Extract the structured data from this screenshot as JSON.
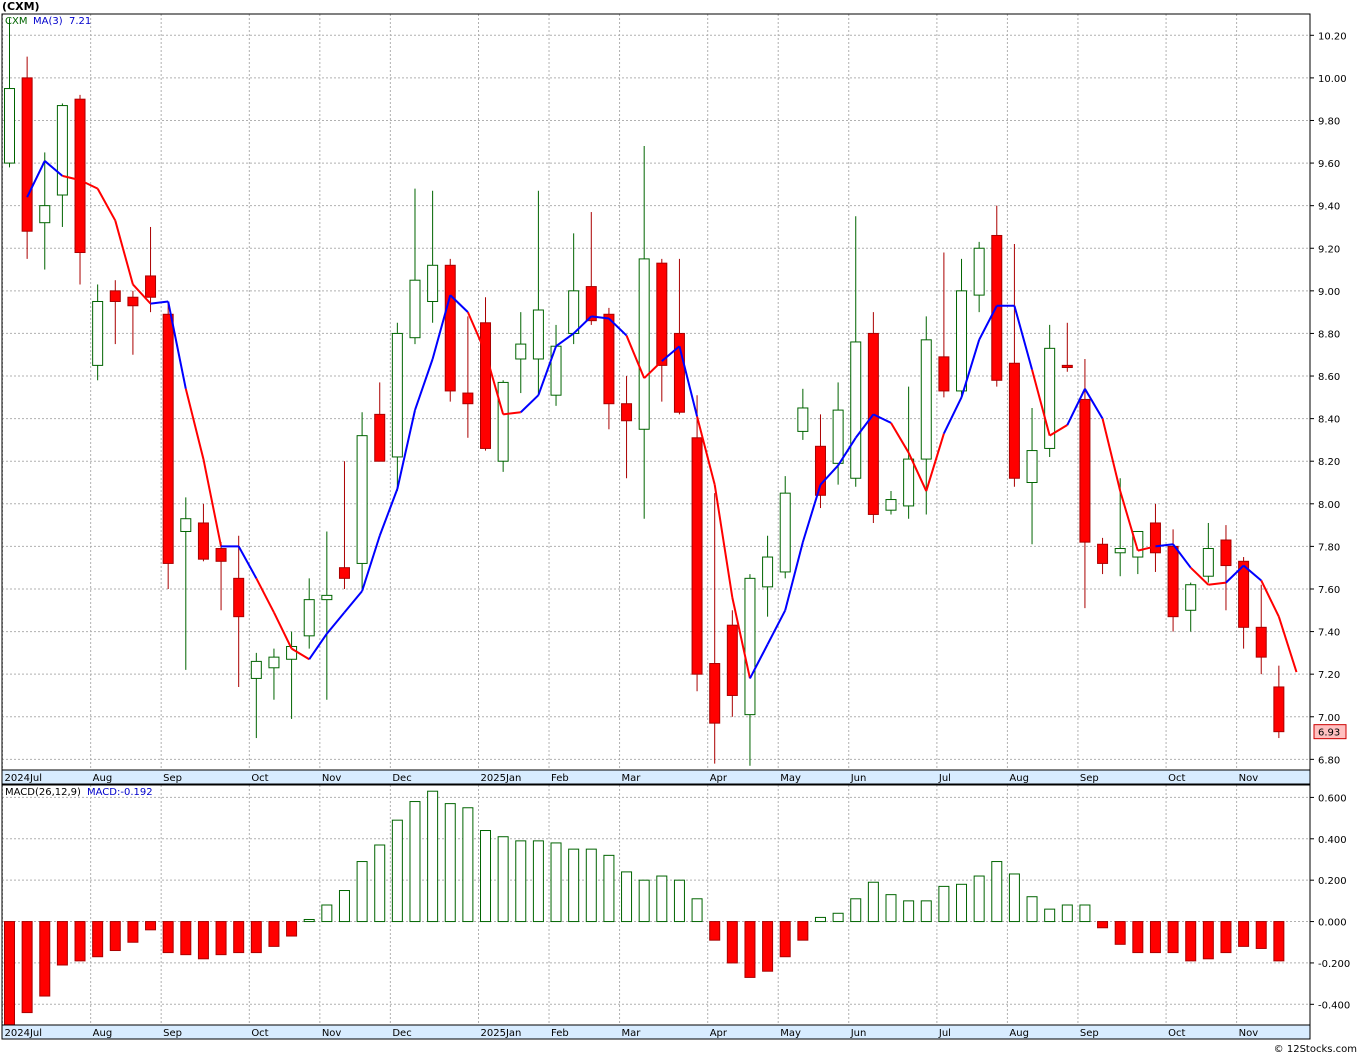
{
  "header": {
    "title": "(CXM)"
  },
  "footer": {
    "watermark": "© 12Stocks.com"
  },
  "colors": {
    "up": "#006400",
    "down": "#ff0000",
    "ma_up": "#0000ff",
    "ma_down": "#ff0000",
    "macd_up": "#006400",
    "macd_down": "#ff0000",
    "grid": "#b0b0b0",
    "axis_band": "#d8ecff"
  },
  "chart_data": [
    {
      "type": "candlestick",
      "panel": "price",
      "symbol_label": "CXM",
      "ma_label": "MA(3)",
      "ma_value": "7.21",
      "last_price_label": "6.93",
      "ylim": [
        6.75,
        10.3
      ],
      "y_ticks": [
        "6.80",
        "7.00",
        "7.20",
        "7.40",
        "7.60",
        "7.80",
        "8.00",
        "8.20",
        "8.40",
        "8.60",
        "8.80",
        "9.00",
        "9.20",
        "9.40",
        "9.60",
        "9.80",
        "10.00",
        "10.20"
      ],
      "x_labels": [
        {
          "week": 0,
          "text": "2024Jul"
        },
        {
          "week": 5,
          "text": "Aug"
        },
        {
          "week": 9,
          "text": "Sep"
        },
        {
          "week": 14,
          "text": "Oct"
        },
        {
          "week": 18,
          "text": "Nov"
        },
        {
          "week": 22,
          "text": "Dec"
        },
        {
          "week": 27,
          "text": "2025Jan"
        },
        {
          "week": 31,
          "text": "Feb"
        },
        {
          "week": 35,
          "text": "Mar"
        },
        {
          "week": 40,
          "text": "Apr"
        },
        {
          "week": 44,
          "text": "May"
        },
        {
          "week": 48,
          "text": "Jun"
        },
        {
          "week": 53,
          "text": "Jul"
        },
        {
          "week": 57,
          "text": "Aug"
        },
        {
          "week": 61,
          "text": "Sep"
        },
        {
          "week": 66,
          "text": "Oct"
        },
        {
          "week": 70,
          "text": "Nov"
        }
      ],
      "candles": [
        {
          "o": 9.6,
          "h": 10.28,
          "l": 9.58,
          "c": 9.95
        },
        {
          "o": 10.0,
          "h": 10.1,
          "l": 9.15,
          "c": 9.28
        },
        {
          "o": 9.32,
          "h": 9.65,
          "l": 9.1,
          "c": 9.4
        },
        {
          "o": 9.45,
          "h": 9.88,
          "l": 9.3,
          "c": 9.87
        },
        {
          "o": 9.9,
          "h": 9.92,
          "l": 9.03,
          "c": 9.18
        },
        {
          "o": 8.65,
          "h": 9.03,
          "l": 8.58,
          "c": 8.95
        },
        {
          "o": 9.0,
          "h": 9.05,
          "l": 8.75,
          "c": 8.95
        },
        {
          "o": 8.97,
          "h": 9.0,
          "l": 8.7,
          "c": 8.93
        },
        {
          "o": 9.07,
          "h": 9.3,
          "l": 8.9,
          "c": 8.97
        },
        {
          "o": 8.89,
          "h": 8.95,
          "l": 7.6,
          "c": 7.72
        },
        {
          "o": 7.87,
          "h": 8.03,
          "l": 7.22,
          "c": 7.93
        },
        {
          "o": 7.91,
          "h": 8.0,
          "l": 7.73,
          "c": 7.74
        },
        {
          "o": 7.79,
          "h": 7.82,
          "l": 7.5,
          "c": 7.73
        },
        {
          "o": 7.65,
          "h": 7.85,
          "l": 7.14,
          "c": 7.47
        },
        {
          "o": 7.18,
          "h": 7.3,
          "l": 6.9,
          "c": 7.26
        },
        {
          "o": 7.23,
          "h": 7.32,
          "l": 7.08,
          "c": 7.28
        },
        {
          "o": 7.27,
          "h": 7.4,
          "l": 6.99,
          "c": 7.33
        },
        {
          "o": 7.38,
          "h": 7.65,
          "l": 7.32,
          "c": 7.55
        },
        {
          "o": 7.55,
          "h": 7.87,
          "l": 7.08,
          "c": 7.57
        },
        {
          "o": 7.7,
          "h": 8.2,
          "l": 7.6,
          "c": 7.65
        },
        {
          "o": 7.72,
          "h": 8.43,
          "l": 7.6,
          "c": 8.32
        },
        {
          "o": 8.42,
          "h": 8.57,
          "l": 8.2,
          "c": 8.2
        },
        {
          "o": 8.22,
          "h": 8.85,
          "l": 8.06,
          "c": 8.8
        },
        {
          "o": 8.78,
          "h": 9.48,
          "l": 8.75,
          "c": 9.05
        },
        {
          "o": 8.95,
          "h": 9.47,
          "l": 8.85,
          "c": 9.12
        },
        {
          "o": 9.12,
          "h": 9.15,
          "l": 8.48,
          "c": 8.53
        },
        {
          "o": 8.52,
          "h": 8.88,
          "l": 8.31,
          "c": 8.47
        },
        {
          "o": 8.85,
          "h": 8.97,
          "l": 8.25,
          "c": 8.26
        },
        {
          "o": 8.2,
          "h": 8.58,
          "l": 8.15,
          "c": 8.57
        },
        {
          "o": 8.68,
          "h": 8.9,
          "l": 8.52,
          "c": 8.75
        },
        {
          "o": 8.68,
          "h": 9.47,
          "l": 8.51,
          "c": 8.91
        },
        {
          "o": 8.51,
          "h": 8.84,
          "l": 8.46,
          "c": 8.74
        },
        {
          "o": 8.8,
          "h": 9.27,
          "l": 8.75,
          "c": 9.0
        },
        {
          "o": 9.02,
          "h": 9.37,
          "l": 8.84,
          "c": 8.86
        },
        {
          "o": 8.89,
          "h": 8.92,
          "l": 8.35,
          "c": 8.47
        },
        {
          "o": 8.47,
          "h": 8.6,
          "l": 8.12,
          "c": 8.39
        },
        {
          "o": 8.35,
          "h": 9.68,
          "l": 7.93,
          "c": 9.15
        },
        {
          "o": 9.13,
          "h": 9.15,
          "l": 8.48,
          "c": 8.65
        },
        {
          "o": 8.8,
          "h": 9.15,
          "l": 8.42,
          "c": 8.43
        },
        {
          "o": 8.31,
          "h": 8.51,
          "l": 7.12,
          "c": 7.2
        },
        {
          "o": 7.25,
          "h": 8.05,
          "l": 6.78,
          "c": 6.97
        },
        {
          "o": 7.43,
          "h": 7.5,
          "l": 7.0,
          "c": 7.1
        },
        {
          "o": 7.01,
          "h": 7.67,
          "l": 6.77,
          "c": 7.65
        },
        {
          "o": 7.61,
          "h": 7.85,
          "l": 7.47,
          "c": 7.75
        },
        {
          "o": 7.68,
          "h": 8.13,
          "l": 7.65,
          "c": 8.05
        },
        {
          "o": 8.34,
          "h": 8.54,
          "l": 8.3,
          "c": 8.45
        },
        {
          "o": 8.27,
          "h": 8.42,
          "l": 7.98,
          "c": 8.04
        },
        {
          "o": 8.19,
          "h": 8.57,
          "l": 8.09,
          "c": 8.44
        },
        {
          "o": 8.12,
          "h": 9.35,
          "l": 8.08,
          "c": 8.76
        },
        {
          "o": 8.8,
          "h": 8.9,
          "l": 7.91,
          "c": 7.95
        },
        {
          "o": 7.97,
          "h": 8.06,
          "l": 7.95,
          "c": 8.02
        },
        {
          "o": 7.99,
          "h": 8.55,
          "l": 7.93,
          "c": 8.21
        },
        {
          "o": 8.21,
          "h": 8.88,
          "l": 7.95,
          "c": 8.77
        },
        {
          "o": 8.69,
          "h": 9.18,
          "l": 8.5,
          "c": 8.53
        },
        {
          "o": 8.53,
          "h": 9.15,
          "l": 8.5,
          "c": 9.0
        },
        {
          "o": 8.98,
          "h": 9.23,
          "l": 8.9,
          "c": 9.2
        },
        {
          "o": 9.26,
          "h": 9.4,
          "l": 8.55,
          "c": 8.58
        },
        {
          "o": 8.66,
          "h": 9.22,
          "l": 8.08,
          "c": 8.12
        },
        {
          "o": 8.1,
          "h": 8.45,
          "l": 7.81,
          "c": 8.25
        },
        {
          "o": 8.26,
          "h": 8.84,
          "l": 8.22,
          "c": 8.73
        },
        {
          "o": 8.65,
          "h": 8.85,
          "l": 8.62,
          "c": 8.64
        },
        {
          "o": 8.49,
          "h": 8.68,
          "l": 7.51,
          "c": 7.82
        },
        {
          "o": 7.81,
          "h": 7.84,
          "l": 7.67,
          "c": 7.72
        },
        {
          "o": 7.77,
          "h": 8.12,
          "l": 7.66,
          "c": 7.79
        },
        {
          "o": 7.75,
          "h": 7.87,
          "l": 7.67,
          "c": 7.87
        },
        {
          "o": 7.91,
          "h": 8.0,
          "l": 7.68,
          "c": 7.77
        },
        {
          "o": 7.8,
          "h": 7.88,
          "l": 7.4,
          "c": 7.47
        },
        {
          "o": 7.5,
          "h": 7.63,
          "l": 7.4,
          "c": 7.62
        },
        {
          "o": 7.66,
          "h": 7.91,
          "l": 7.63,
          "c": 7.79
        },
        {
          "o": 7.83,
          "h": 7.9,
          "l": 7.5,
          "c": 7.71
        },
        {
          "o": 7.73,
          "h": 7.75,
          "l": 7.32,
          "c": 7.42
        },
        {
          "o": 7.42,
          "h": 7.62,
          "l": 7.2,
          "c": 7.28
        },
        {
          "o": 7.14,
          "h": 7.24,
          "l": 6.9,
          "c": 6.93
        }
      ],
      "ma": [
        9.44,
        9.61,
        9.54,
        9.52,
        9.48,
        9.33,
        9.03,
        8.94,
        8.95,
        8.54,
        8.21,
        7.8,
        7.8,
        7.65,
        7.49,
        7.32,
        7.27,
        7.39,
        7.49,
        7.59,
        7.85,
        8.07,
        8.44,
        8.68,
        8.98,
        8.9,
        8.71,
        8.42,
        8.43,
        8.51,
        8.74,
        8.8,
        8.88,
        8.87,
        8.79,
        8.59,
        8.67,
        8.74,
        8.41,
        8.09,
        7.56,
        7.18,
        7.34,
        7.5,
        7.82,
        8.09,
        8.18,
        8.31,
        8.42,
        8.38,
        8.24,
        8.06,
        8.33,
        8.5,
        8.77,
        8.93,
        8.93,
        8.63,
        8.32,
        8.37,
        8.54,
        8.4,
        8.06,
        7.78,
        7.8,
        7.81,
        7.7,
        7.62,
        7.63,
        7.71,
        7.64,
        7.47,
        7.21
      ],
      "ma_up": [
        1,
        1,
        0,
        0,
        0,
        0,
        0,
        1,
        1,
        0,
        0,
        1,
        1,
        0,
        0,
        0,
        1,
        1,
        1,
        1,
        1,
        1,
        1,
        1,
        1,
        0,
        0,
        0,
        1,
        1,
        1,
        1,
        1,
        1,
        0,
        0,
        1,
        1,
        0,
        0,
        0,
        1,
        1,
        1,
        1,
        1,
        1,
        1,
        1,
        0,
        0,
        0,
        1,
        1,
        1,
        1,
        1,
        0,
        0,
        1,
        1,
        0,
        0,
        0,
        1,
        1,
        0,
        0,
        1,
        1,
        0,
        0,
        0
      ]
    },
    {
      "type": "bar",
      "panel": "macd",
      "label": "MACD(26,12,9)",
      "value_label": "MACD:-0.192",
      "ylim": [
        -0.5,
        0.66
      ],
      "y_ticks": [
        "-0.400",
        "-0.200",
        "0.000",
        "0.200",
        "0.400",
        "0.600"
      ],
      "values": [
        -0.51,
        -0.44,
        -0.36,
        -0.21,
        -0.19,
        -0.17,
        -0.14,
        -0.1,
        -0.04,
        -0.15,
        -0.16,
        -0.18,
        -0.16,
        -0.15,
        -0.15,
        -0.12,
        -0.07,
        0.01,
        0.08,
        0.15,
        0.29,
        0.37,
        0.49,
        0.58,
        0.63,
        0.57,
        0.55,
        0.44,
        0.41,
        0.39,
        0.39,
        0.38,
        0.35,
        0.35,
        0.32,
        0.24,
        0.2,
        0.22,
        0.2,
        0.11,
        -0.09,
        -0.2,
        -0.27,
        -0.24,
        -0.17,
        -0.09,
        0.02,
        0.04,
        0.11,
        0.19,
        0.13,
        0.1,
        0.1,
        0.17,
        0.18,
        0.22,
        0.29,
        0.23,
        0.12,
        0.06,
        0.08,
        0.08,
        -0.03,
        -0.11,
        -0.15,
        -0.15,
        -0.15,
        -0.19,
        -0.18,
        -0.15,
        -0.12,
        -0.13,
        -0.19
      ]
    }
  ]
}
